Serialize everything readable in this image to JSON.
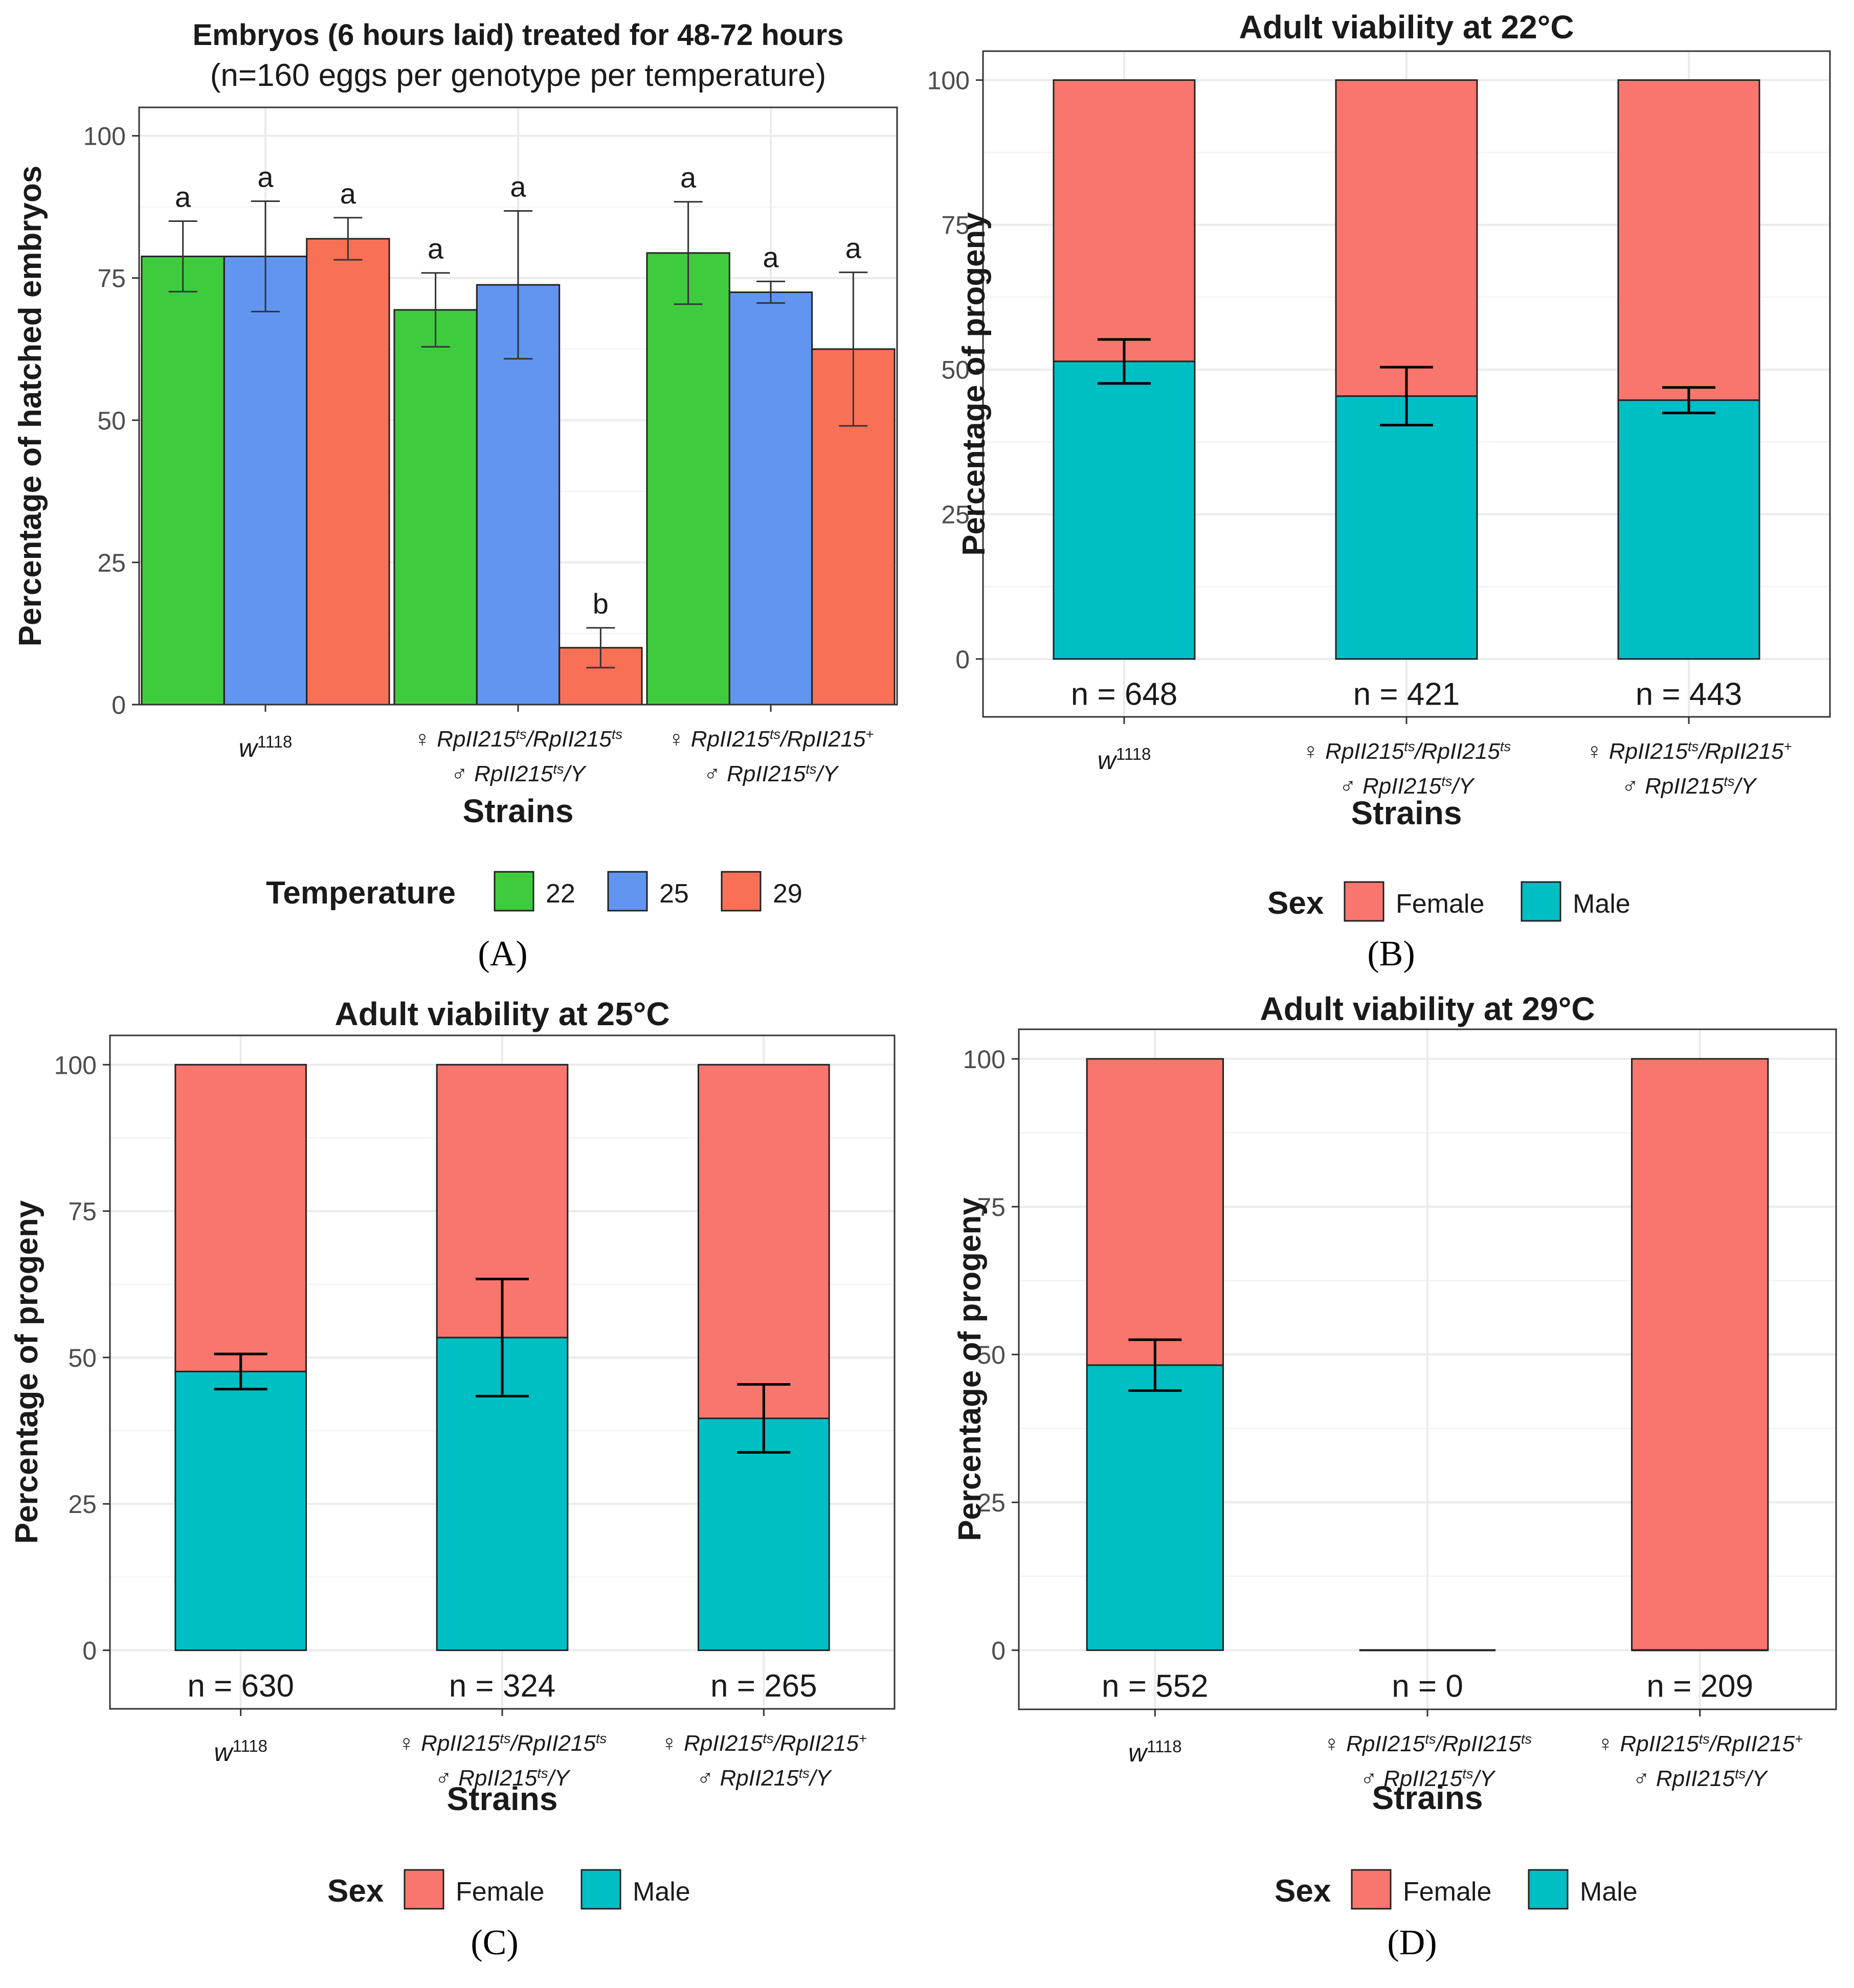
{
  "chart_data": [
    {
      "panel": "(A)",
      "type": "bar",
      "title": "Embryos (6 hours laid) treated for 48-72 hours",
      "subtitle": "(n=160 eggs per genotype per temperature)",
      "xlabel": "Strains",
      "ylabel": "Percentage of hatched embryos",
      "ylim": [
        0,
        105
      ],
      "yticks": [
        0,
        25,
        50,
        75,
        100
      ],
      "categories": [
        {
          "line1": "w",
          "sup1": "1118",
          "line2": ""
        },
        {
          "line1": "♀ RpII215ts/RpII215ts",
          "line2": "♂ RpII215ts/Y"
        },
        {
          "line1": "♀ RpII215ts/RpII215+",
          "line2": "♂ RpII215ts/Y"
        }
      ],
      "legend_title": "Temperature",
      "series": [
        {
          "name": "22",
          "color": "#3ecc3e",
          "values": [
            78.8,
            69.4,
            79.4
          ],
          "err": [
            6.2,
            6.5,
            9.0
          ],
          "letters": [
            "a",
            "a",
            "a"
          ]
        },
        {
          "name": "25",
          "color": "#6195f0",
          "values": [
            78.8,
            73.8,
            72.5
          ],
          "err": [
            9.7,
            13.0,
            1.9
          ],
          "letters": [
            "a",
            "a",
            "a"
          ]
        },
        {
          "name": "29",
          "color": "#f87056",
          "values": [
            81.9,
            10.0,
            62.5
          ],
          "err": [
            3.7,
            3.5,
            13.5
          ],
          "letters": [
            "a",
            "b",
            "a"
          ]
        }
      ]
    },
    {
      "panel": "(B)",
      "type": "stacked-bar",
      "title": "Adult viability at 22°C",
      "xlabel": "Strains",
      "ylabel": "Percentage of progeny",
      "ylim": [
        -10,
        105
      ],
      "yticks": [
        0,
        25,
        50,
        75,
        100
      ],
      "categories": [
        {
          "line1": "w",
          "sup1": "1118",
          "line2": ""
        },
        {
          "line1": "♀ RpII215ts/RpII215ts",
          "line2": "♂ RpII215ts/Y"
        },
        {
          "line1": "♀ RpII215ts/RpII215+",
          "line2": "♂ RpII215ts/Y"
        }
      ],
      "n_labels": [
        "n = 648",
        "n = 421",
        "n = 443"
      ],
      "legend_title": "Sex",
      "series": [
        {
          "name": "Female",
          "color": "#f8766d"
        },
        {
          "name": "Male",
          "color": "#00bfc4"
        }
      ],
      "male_values": [
        51.4,
        45.4,
        44.7
      ],
      "total_values": [
        100,
        100,
        100
      ],
      "male_err": [
        3.8,
        5.0,
        2.2
      ]
    },
    {
      "panel": "(C)",
      "type": "stacked-bar",
      "title": "Adult viability at 25°C",
      "xlabel": "Strains",
      "ylabel": "Percentage of progeny",
      "ylim": [
        -10,
        105
      ],
      "yticks": [
        0,
        25,
        50,
        75,
        100
      ],
      "categories": [
        {
          "line1": "w",
          "sup1": "1118",
          "line2": ""
        },
        {
          "line1": "♀ RpII215ts/RpII215ts",
          "line2": "♂ RpII215ts/Y"
        },
        {
          "line1": "♀ RpII215ts/RpII215+",
          "line2": "♂ RpII215ts/Y"
        }
      ],
      "n_labels": [
        "n = 630",
        "n = 324",
        "n = 265"
      ],
      "legend_title": "Sex",
      "series": [
        {
          "name": "Female",
          "color": "#f8766d"
        },
        {
          "name": "Male",
          "color": "#00bfc4"
        }
      ],
      "male_values": [
        47.6,
        53.4,
        39.6
      ],
      "total_values": [
        100,
        100,
        100
      ],
      "male_err": [
        3.0,
        10.0,
        5.8
      ]
    },
    {
      "panel": "(D)",
      "type": "stacked-bar",
      "title": "Adult viability at 29°C",
      "xlabel": "Strains",
      "ylabel": "Percentage of progeny",
      "ylim": [
        -10,
        105
      ],
      "yticks": [
        0,
        25,
        50,
        75,
        100
      ],
      "categories": [
        {
          "line1": "w",
          "sup1": "1118",
          "line2": ""
        },
        {
          "line1": "♀ RpII215ts/RpII215ts",
          "line2": "♂ RpII215ts/Y"
        },
        {
          "line1": "♀ RpII215ts/RpII215+",
          "line2": "♂ RpII215ts/Y"
        }
      ],
      "n_labels": [
        "n = 552",
        "n = 0",
        "n = 209"
      ],
      "legend_title": "Sex",
      "series": [
        {
          "name": "Female",
          "color": "#f8766d"
        },
        {
          "name": "Male",
          "color": "#00bfc4"
        }
      ],
      "male_values": [
        48.2,
        0,
        0
      ],
      "total_values": [
        100,
        0,
        100
      ],
      "male_err": [
        4.3,
        0,
        0
      ]
    }
  ]
}
